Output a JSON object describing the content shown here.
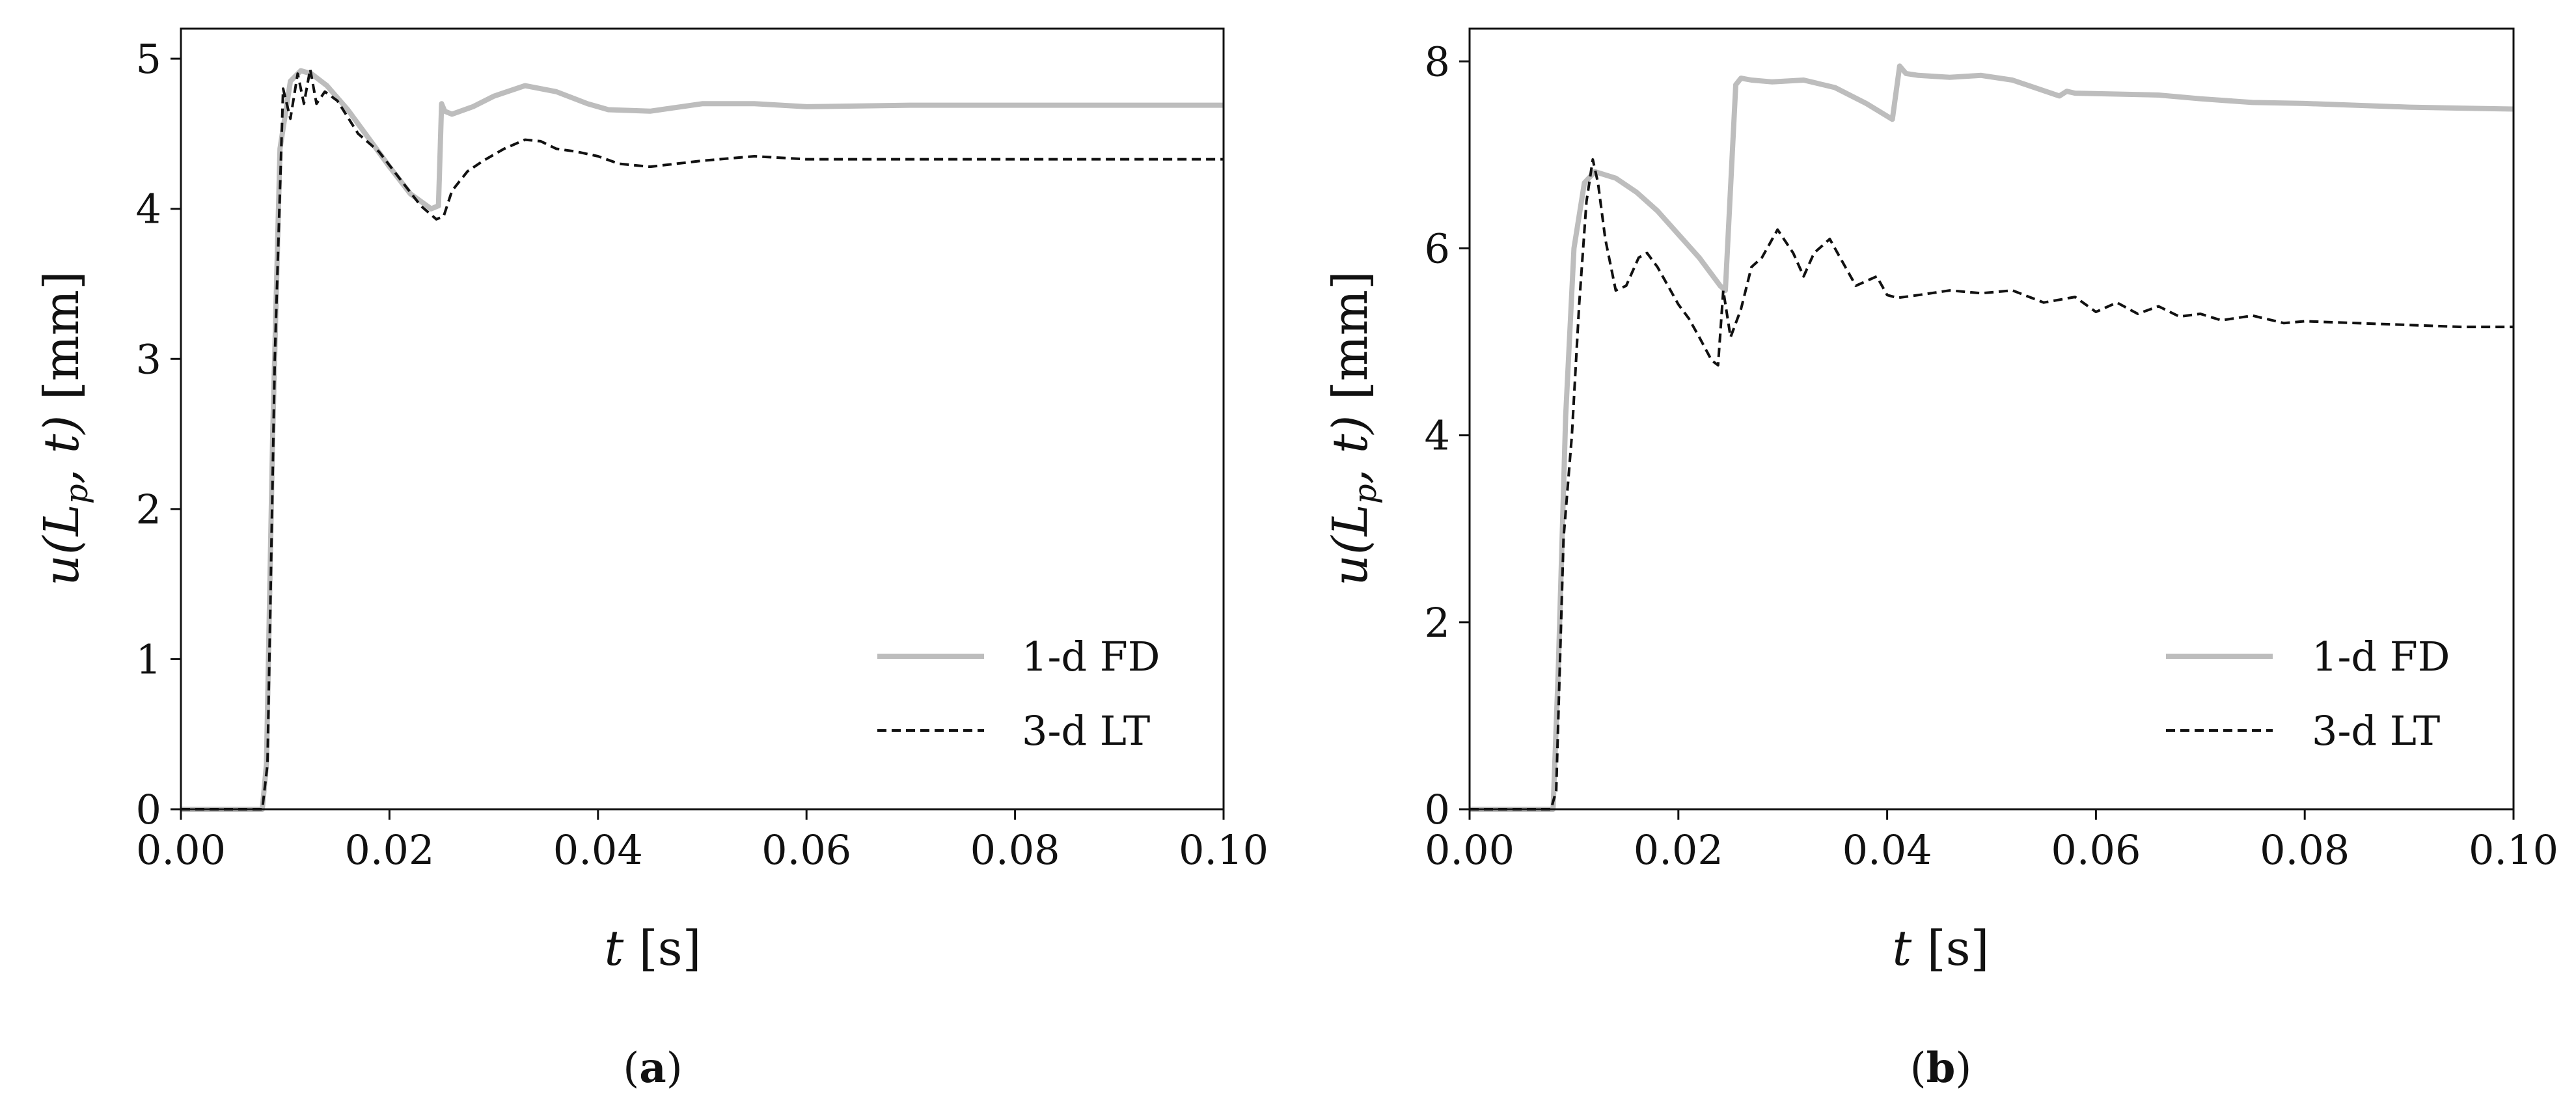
{
  "chart_data": [
    {
      "type": "line",
      "caption_letter": "a",
      "xlabel_var": "t",
      "xlabel_unit": "[s]",
      "ylabel_func": "u(L",
      "ylabel_sub": "p",
      "ylabel_rest": ", t)",
      "ylabel_unit": "[mm]",
      "xlim": [
        0.0,
        0.1
      ],
      "ylim": [
        0,
        5.2
      ],
      "xticks": [
        0.0,
        0.02,
        0.04,
        0.06,
        0.08,
        0.1
      ],
      "xtick_labels": [
        "0.00",
        "0.02",
        "0.04",
        "0.06",
        "0.08",
        "0.10"
      ],
      "yticks": [
        0,
        1,
        2,
        3,
        4,
        5
      ],
      "ytick_labels": [
        "0",
        "1",
        "2",
        "3",
        "4",
        "5"
      ],
      "grid": false,
      "legend_position": "lower-right",
      "series": [
        {
          "name": "1-d FD",
          "color": "#bdbdbd",
          "style": "solid",
          "x": [
            0,
            0.0078,
            0.0082,
            0.0088,
            0.0095,
            0.0105,
            0.0115,
            0.0125,
            0.014,
            0.016,
            0.018,
            0.02,
            0.022,
            0.024,
            0.0247,
            0.025,
            0.0253,
            0.026,
            0.028,
            0.03,
            0.033,
            0.036,
            0.039,
            0.041,
            0.045,
            0.05,
            0.055,
            0.06,
            0.07,
            0.08,
            0.09,
            0.1
          ],
          "y": [
            0,
            0,
            0.3,
            2.5,
            4.4,
            4.85,
            4.92,
            4.9,
            4.82,
            4.66,
            4.47,
            4.28,
            4.1,
            4.0,
            4.02,
            4.7,
            4.65,
            4.63,
            4.68,
            4.75,
            4.82,
            4.78,
            4.7,
            4.66,
            4.65,
            4.7,
            4.7,
            4.68,
            4.69,
            4.69,
            4.69,
            4.69
          ]
        },
        {
          "name": "3-d LT",
          "color": "#111111",
          "style": "dashed",
          "x": [
            0,
            0.0078,
            0.0083,
            0.009,
            0.0098,
            0.0105,
            0.0112,
            0.0118,
            0.0124,
            0.013,
            0.0138,
            0.015,
            0.017,
            0.019,
            0.021,
            0.023,
            0.0245,
            0.0252,
            0.026,
            0.0275,
            0.029,
            0.031,
            0.033,
            0.0345,
            0.036,
            0.038,
            0.04,
            0.042,
            0.045,
            0.05,
            0.055,
            0.06,
            0.07,
            0.08,
            0.09,
            0.1
          ],
          "y": [
            0,
            0,
            0.3,
            3.0,
            4.8,
            4.6,
            4.9,
            4.7,
            4.93,
            4.7,
            4.78,
            4.72,
            4.5,
            4.38,
            4.2,
            4.02,
            3.93,
            3.95,
            4.12,
            4.25,
            4.32,
            4.4,
            4.46,
            4.45,
            4.4,
            4.38,
            4.35,
            4.3,
            4.28,
            4.32,
            4.35,
            4.33,
            4.33,
            4.33,
            4.33,
            4.33
          ]
        }
      ]
    },
    {
      "type": "line",
      "caption_letter": "b",
      "xlabel_var": "t",
      "xlabel_unit": "[s]",
      "ylabel_func": "u(L",
      "ylabel_sub": "p",
      "ylabel_rest": ", t)",
      "ylabel_unit": "[mm]",
      "xlim": [
        0.0,
        0.1
      ],
      "ylim": [
        0,
        8.35
      ],
      "xticks": [
        0.0,
        0.02,
        0.04,
        0.06,
        0.08,
        0.1
      ],
      "xtick_labels": [
        "0.00",
        "0.02",
        "0.04",
        "0.06",
        "0.08",
        "0.10"
      ],
      "yticks": [
        0,
        2,
        4,
        6,
        8
      ],
      "ytick_labels": [
        "0",
        "2",
        "4",
        "6",
        "8"
      ],
      "grid": false,
      "legend_position": "lower-right",
      "series": [
        {
          "name": "1-d FD",
          "color": "#bdbdbd",
          "style": "solid",
          "x": [
            0,
            0.008,
            0.0085,
            0.0092,
            0.01,
            0.011,
            0.012,
            0.014,
            0.016,
            0.018,
            0.02,
            0.022,
            0.024,
            0.0245,
            0.0255,
            0.026,
            0.027,
            0.029,
            0.032,
            0.035,
            0.038,
            0.0405,
            0.0412,
            0.0418,
            0.043,
            0.046,
            0.049,
            0.052,
            0.0565,
            0.0572,
            0.058,
            0.062,
            0.066,
            0.07,
            0.075,
            0.08,
            0.085,
            0.09,
            0.095,
            0.1
          ],
          "y": [
            0,
            0,
            1.5,
            4.2,
            6.0,
            6.7,
            6.82,
            6.75,
            6.6,
            6.4,
            6.15,
            5.9,
            5.6,
            5.55,
            7.75,
            7.82,
            7.8,
            7.78,
            7.8,
            7.72,
            7.55,
            7.38,
            7.95,
            7.87,
            7.85,
            7.83,
            7.85,
            7.8,
            7.63,
            7.68,
            7.66,
            7.65,
            7.64,
            7.6,
            7.56,
            7.55,
            7.53,
            7.51,
            7.5,
            7.49
          ]
        },
        {
          "name": "3-d LT",
          "color": "#111111",
          "style": "dashed",
          "x": [
            0,
            0.0078,
            0.0083,
            0.009,
            0.0098,
            0.0105,
            0.0112,
            0.0118,
            0.0123,
            0.013,
            0.014,
            0.015,
            0.0162,
            0.017,
            0.018,
            0.019,
            0.02,
            0.021,
            0.022,
            0.0232,
            0.0238,
            0.0243,
            0.025,
            0.026,
            0.027,
            0.028,
            0.0295,
            0.031,
            0.032,
            0.033,
            0.0345,
            0.036,
            0.037,
            0.038,
            0.039,
            0.04,
            0.041,
            0.043,
            0.046,
            0.049,
            0.052,
            0.055,
            0.058,
            0.06,
            0.062,
            0.064,
            0.066,
            0.068,
            0.07,
            0.072,
            0.075,
            0.078,
            0.08,
            0.085,
            0.09,
            0.095,
            0.1
          ],
          "y": [
            0,
            0,
            0.2,
            2.9,
            4.0,
            5.4,
            6.5,
            6.95,
            6.7,
            6.1,
            5.55,
            5.6,
            5.9,
            5.95,
            5.8,
            5.6,
            5.4,
            5.25,
            5.05,
            4.8,
            4.75,
            5.55,
            5.05,
            5.35,
            5.8,
            5.9,
            6.2,
            5.95,
            5.7,
            5.95,
            6.1,
            5.8,
            5.6,
            5.65,
            5.7,
            5.5,
            5.47,
            5.5,
            5.55,
            5.52,
            5.55,
            5.42,
            5.48,
            5.32,
            5.42,
            5.3,
            5.38,
            5.27,
            5.3,
            5.23,
            5.28,
            5.2,
            5.22,
            5.2,
            5.18,
            5.16,
            5.16
          ]
        }
      ]
    }
  ]
}
